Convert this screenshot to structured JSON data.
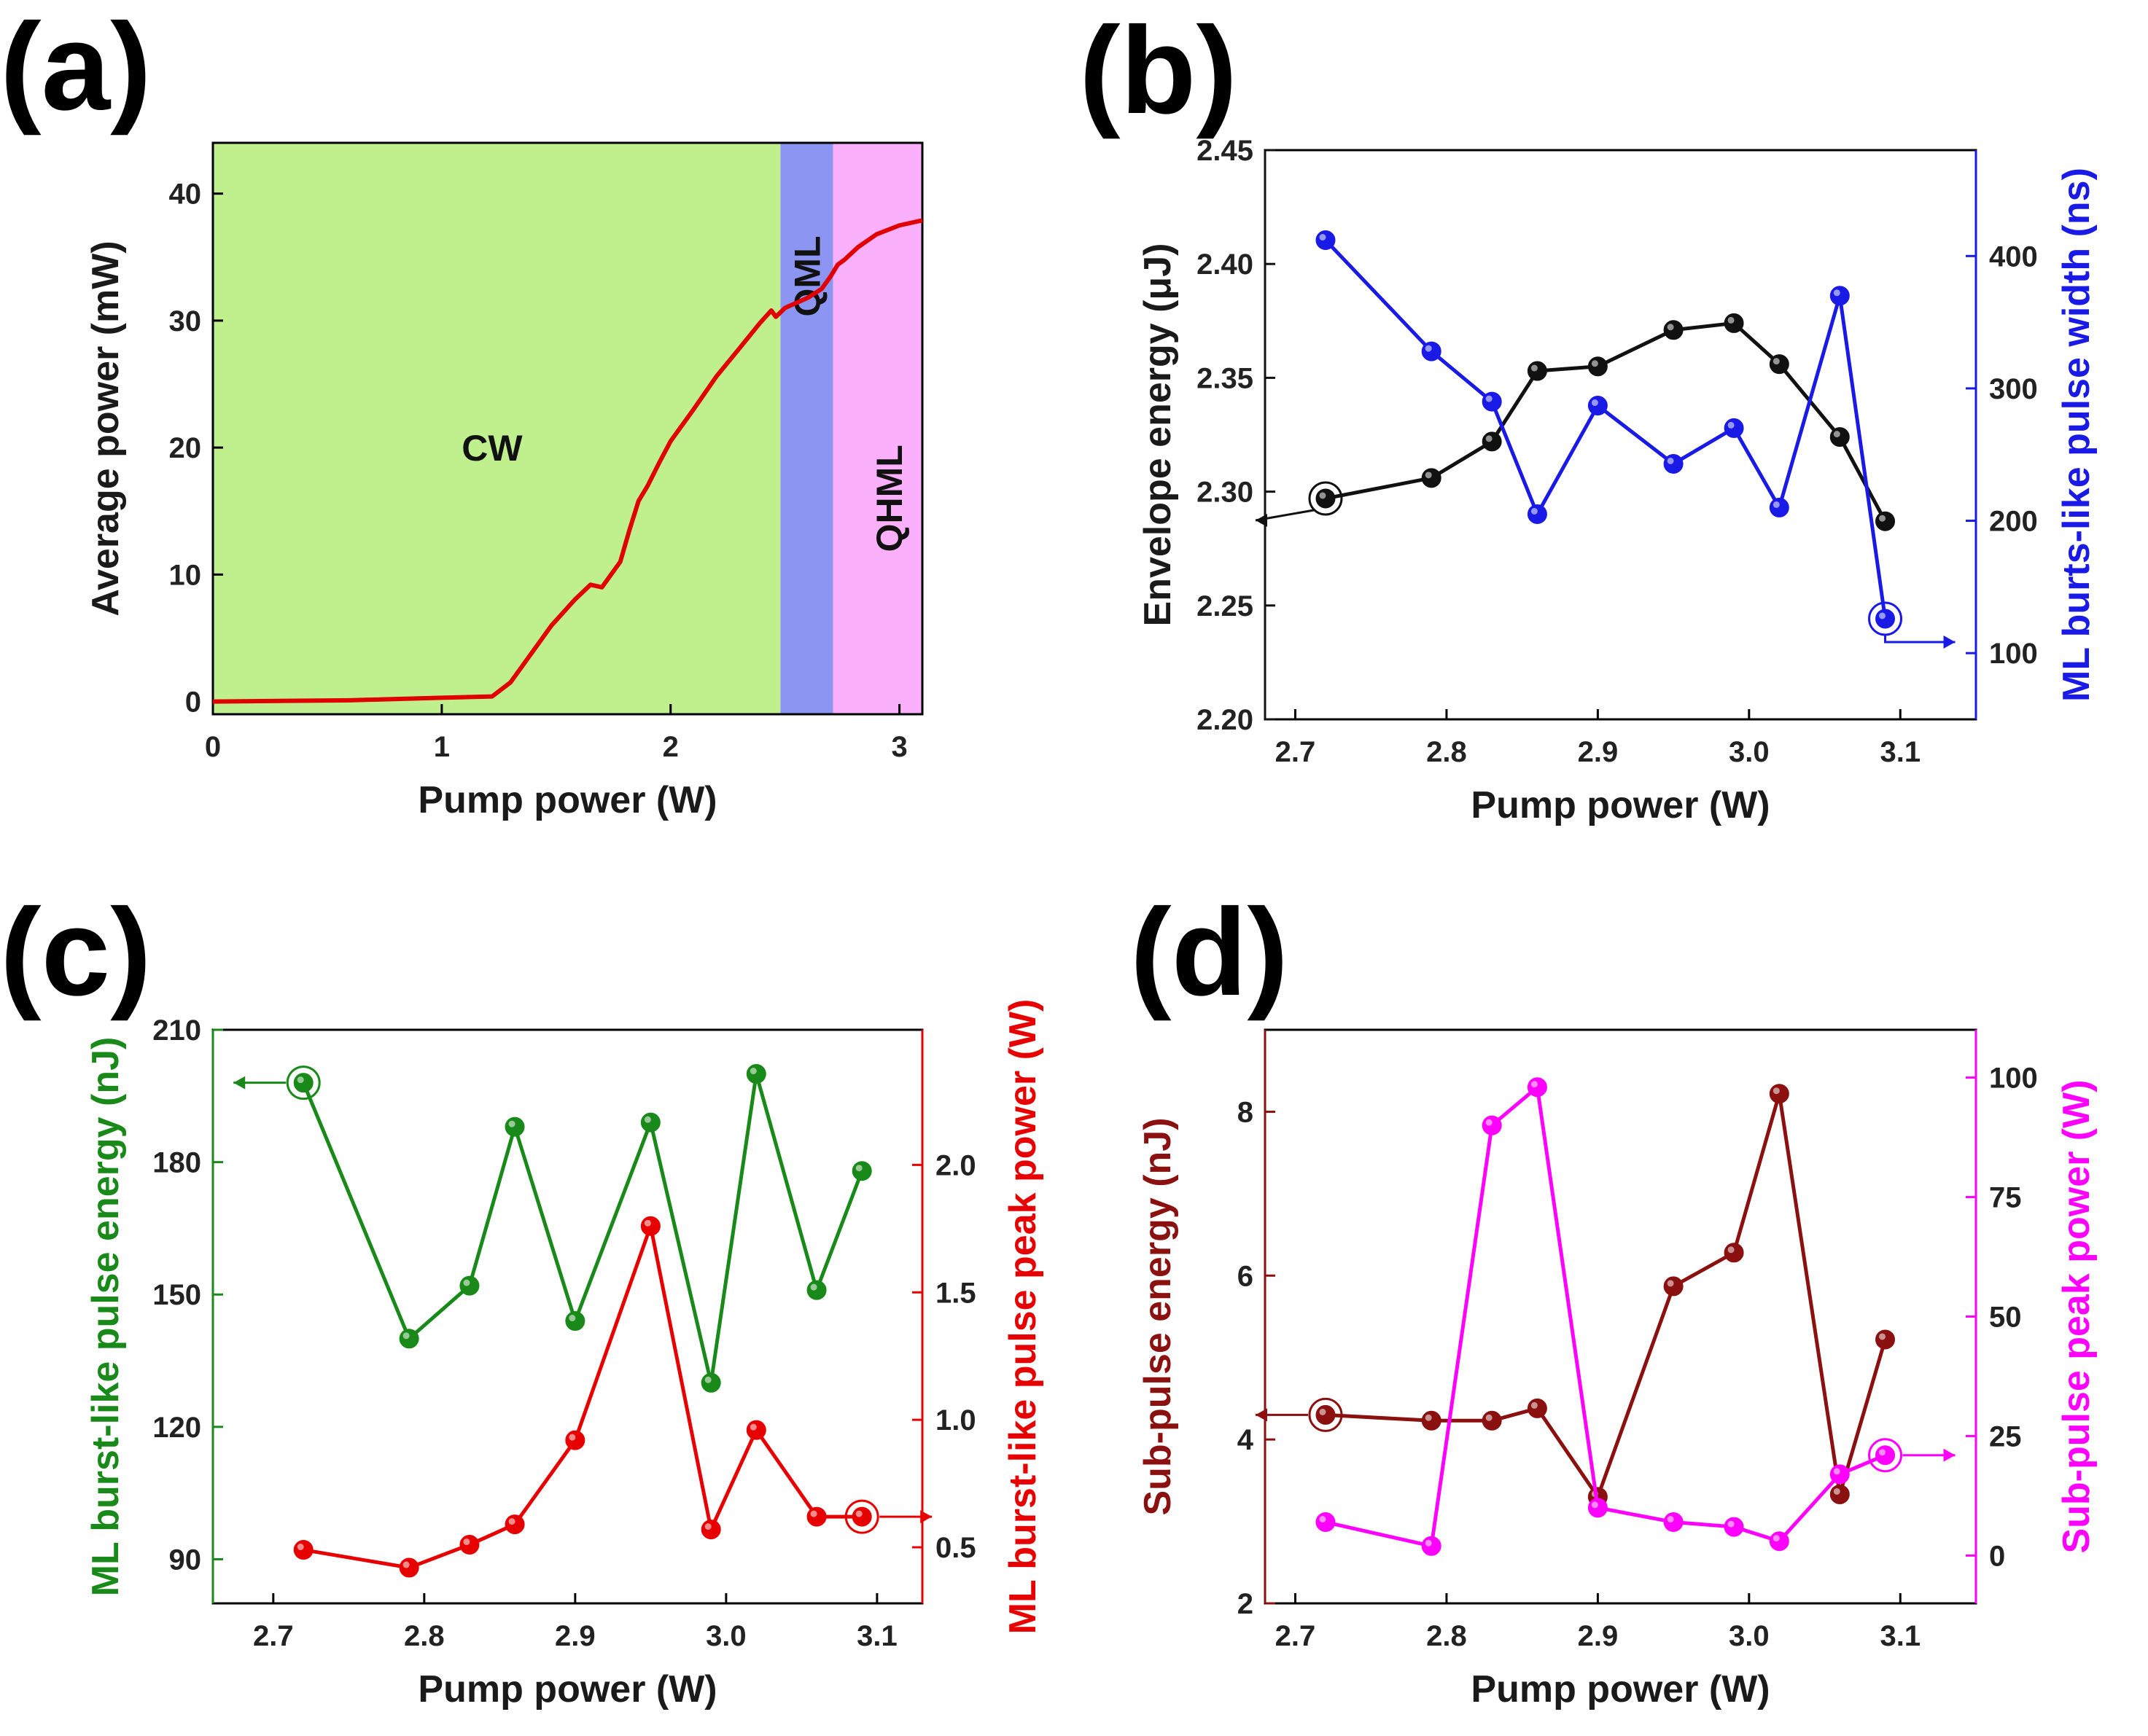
{
  "chart_data": [
    {
      "panel": "(a)",
      "type": "area",
      "xlabel": "Pump power (W)",
      "ylabel": "Average power (mW)",
      "xlim": [
        0,
        3.1
      ],
      "ylim": [
        -1,
        44
      ],
      "xticks": [
        "0",
        "1",
        "2",
        "3"
      ],
      "xtick_values": [
        0,
        1,
        2,
        3
      ],
      "yticks": [
        "0",
        "10",
        "20",
        "30",
        "40"
      ],
      "ytick_values": [
        0,
        10,
        20,
        30,
        40
      ],
      "regions": [
        {
          "name": "CW",
          "from": 0,
          "to": 2.48,
          "color": "#c0f08e"
        },
        {
          "name": "QML",
          "from": 2.48,
          "to": 2.71,
          "color": "#8c96f2"
        },
        {
          "name": "QHML",
          "from": 2.71,
          "to": 3.1,
          "color": "#fbb0fb"
        }
      ],
      "region_labels": {
        "cw": "CW",
        "qml": "QML",
        "qhml": "QHML"
      },
      "series": [
        {
          "name": "Average power",
          "color": "#e00000",
          "x": [
            0,
            0.6,
            1.0,
            1.22,
            1.3,
            1.38,
            1.48,
            1.58,
            1.65,
            1.7,
            1.78,
            1.82,
            1.86,
            1.9,
            1.95,
            2.0,
            2.1,
            2.2,
            2.3,
            2.39,
            2.44,
            2.46,
            2.5,
            2.6,
            2.66,
            2.7,
            2.73,
            2.76,
            2.82,
            2.9,
            3.0,
            3.1
          ],
          "y": [
            0,
            0.1,
            0.3,
            0.4,
            1.5,
            3.5,
            6.0,
            8.0,
            9.2,
            9.0,
            11.0,
            13.5,
            15.8,
            17.0,
            18.8,
            20.5,
            23.0,
            25.6,
            27.8,
            29.8,
            30.8,
            30.3,
            31.0,
            31.8,
            32.5,
            33.5,
            34.4,
            34.8,
            35.8,
            36.8,
            37.5,
            37.9
          ]
        }
      ]
    },
    {
      "panel": "(b)",
      "type": "line",
      "xlabel": "Pump power (W)",
      "ylabel": "Envelope energy (μJ)",
      "ylabel2": "ML burts-like pulse width (ns)",
      "xlim": [
        2.68,
        3.15
      ],
      "ylim": [
        2.2,
        2.45
      ],
      "ylim2": [
        50,
        480
      ],
      "xticks": [
        "2.7",
        "2.8",
        "2.9",
        "3.0",
        "3.1"
      ],
      "xtick_values": [
        2.7,
        2.8,
        2.9,
        3.0,
        3.1
      ],
      "yticks": [
        "2.20",
        "2.25",
        "2.30",
        "2.35",
        "2.40",
        "2.45"
      ],
      "ytick_values": [
        2.2,
        2.25,
        2.3,
        2.35,
        2.4,
        2.45
      ],
      "yticks2": [
        "100",
        "200",
        "300",
        "400"
      ],
      "ytick_values2": [
        100,
        200,
        300,
        400
      ],
      "x": [
        2.72,
        2.79,
        2.83,
        2.86,
        2.9,
        2.95,
        2.99,
        3.02,
        3.06,
        3.09
      ],
      "series": [
        {
          "name": "Envelope energy",
          "axis": "left",
          "color": "#111111",
          "values": [
            2.297,
            2.306,
            2.322,
            2.353,
            2.355,
            2.371,
            2.374,
            2.356,
            2.324,
            2.287
          ],
          "marker_index": 0,
          "arrow": "left"
        },
        {
          "name": "ML burts-like pulse width",
          "axis": "right",
          "color": "#1a1ae6",
          "values": [
            412,
            328,
            290,
            205,
            287,
            243,
            270,
            210,
            370,
            126
          ],
          "marker_index": 9,
          "arrow": "right"
        }
      ]
    },
    {
      "panel": "(c)",
      "type": "line",
      "xlabel": "Pump power (W)",
      "ylabel": "ML burst-like pulse energy (nJ)",
      "ylabel2": "ML burst-like pulse peak power (W)",
      "xlim": [
        2.66,
        3.13
      ],
      "ylim": [
        80,
        210
      ],
      "ylim2": [
        0.28,
        2.53
      ],
      "xticks": [
        "2.7",
        "2.8",
        "2.9",
        "3.0",
        "3.1"
      ],
      "xtick_values": [
        2.7,
        2.8,
        2.9,
        3.0,
        3.1
      ],
      "yticks": [
        "90",
        "120",
        "150",
        "180",
        "210"
      ],
      "ytick_values": [
        90,
        120,
        150,
        180,
        210
      ],
      "yticks2": [
        "0.5",
        "1.0",
        "1.5",
        "2.0"
      ],
      "ytick_values2": [
        0.5,
        1.0,
        1.5,
        2.0
      ],
      "x": [
        2.72,
        2.79,
        2.83,
        2.86,
        2.9,
        2.95,
        2.99,
        3.02,
        3.06,
        3.09
      ],
      "series": [
        {
          "name": "ML burst-like pulse energy",
          "axis": "left",
          "color": "#198a19",
          "values": [
            198,
            140,
            152,
            188,
            144,
            189,
            130,
            200,
            151,
            178
          ],
          "marker_index": 0,
          "arrow": "left"
        },
        {
          "name": "ML burst-like pulse peak power",
          "axis": "right",
          "color": "#e60000",
          "values": [
            0.49,
            0.42,
            0.51,
            0.59,
            0.92,
            1.76,
            0.57,
            0.96,
            0.62,
            0.62
          ],
          "marker_index": 9,
          "arrow": "right"
        }
      ]
    },
    {
      "panel": "(d)",
      "type": "line",
      "xlabel": "Pump power (W)",
      "ylabel": "Sub-pulse energy (nJ)",
      "ylabel2": "Sub-pulse peak power (W)",
      "xlim": [
        2.68,
        3.15
      ],
      "ylim": [
        2,
        9
      ],
      "ylim2": [
        -10,
        110
      ],
      "xticks": [
        "2.7",
        "2.8",
        "2.9",
        "3.0",
        "3.1"
      ],
      "xtick_values": [
        2.7,
        2.8,
        2.9,
        3.0,
        3.1
      ],
      "yticks": [
        "2",
        "4",
        "6",
        "8"
      ],
      "ytick_values": [
        2,
        4,
        6,
        8
      ],
      "yticks2": [
        "0",
        "25",
        "50",
        "75",
        "100"
      ],
      "ytick_values2": [
        0,
        25,
        50,
        75,
        100
      ],
      "x": [
        2.72,
        2.79,
        2.83,
        2.86,
        2.9,
        2.95,
        2.99,
        3.02,
        3.06,
        3.09
      ],
      "series": [
        {
          "name": "Sub-pulse energy",
          "axis": "left",
          "color": "#8b1010",
          "values": [
            4.3,
            4.23,
            4.23,
            4.38,
            3.3,
            5.87,
            6.28,
            8.22,
            3.33,
            5.22
          ],
          "marker_index": 0,
          "arrow": "left"
        },
        {
          "name": "Sub-pulse peak power",
          "axis": "right",
          "color": "#ff00ff",
          "values": [
            7,
            2,
            90,
            98,
            10,
            7,
            6,
            3,
            17,
            21
          ],
          "marker_index": 9,
          "arrow": "right"
        }
      ]
    }
  ]
}
